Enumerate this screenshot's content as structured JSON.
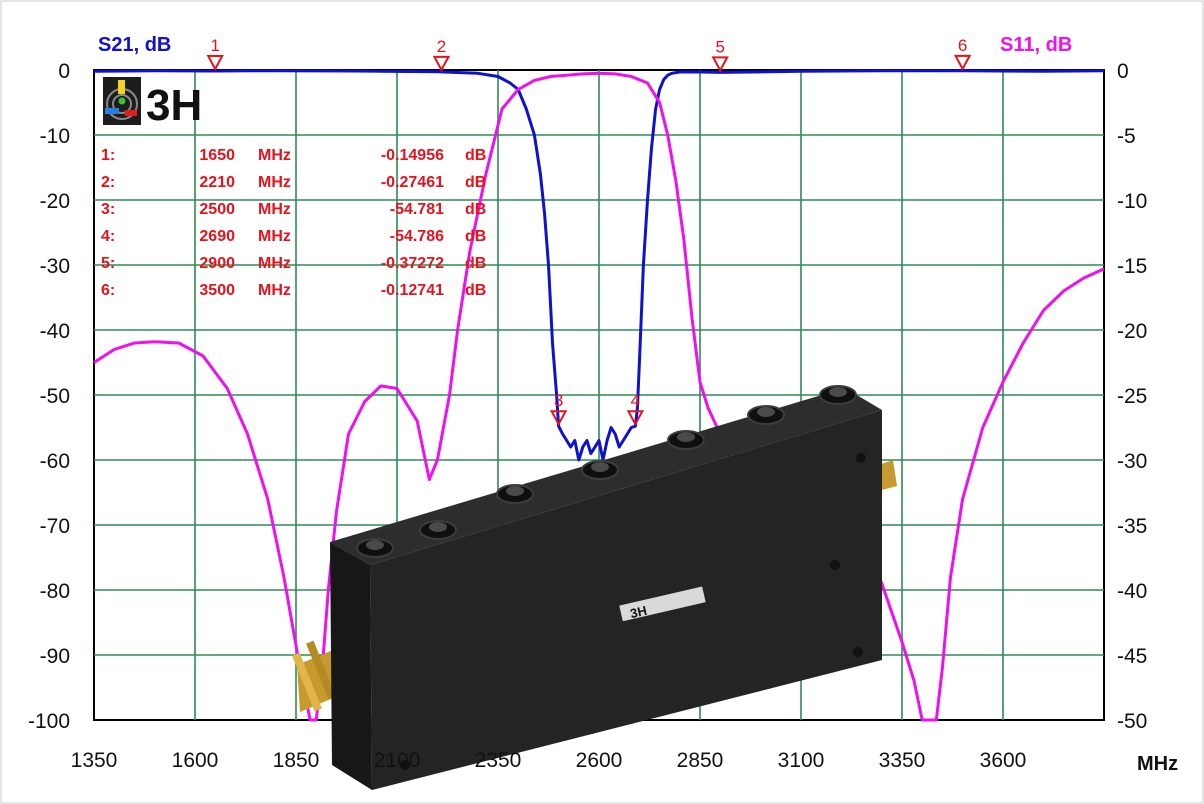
{
  "chart_data": {
    "type": "line",
    "xlabel": "MHz",
    "x_ticks": [
      "1350",
      "1600",
      "1850",
      "2100",
      "2350",
      "2600",
      "2850",
      "3100",
      "3350",
      "3600"
    ],
    "xlim": [
      1350,
      3850
    ],
    "y_left_label": "S21, dB",
    "y_left_ticks": [
      "0",
      "-10",
      "-20",
      "-30",
      "-40",
      "-50",
      "-60",
      "-70",
      "-80",
      "-90",
      "-100"
    ],
    "y_left_lim": [
      -100,
      0
    ],
    "y_right_label": "S11, dB",
    "y_right_ticks": [
      "0",
      "-5",
      "-10",
      "-15",
      "-20",
      "-25",
      "-30",
      "-35",
      "-40",
      "-45",
      "-50"
    ],
    "y_right_lim": [
      -50,
      0
    ],
    "grid": true,
    "series": [
      {
        "name": "S21, dB",
        "axis": "left",
        "color": "#1010d0",
        "x": [
          1350,
          1500,
          1650,
          1800,
          2000,
          2200,
          2300,
          2350,
          2380,
          2400,
          2420,
          2440,
          2455,
          2465,
          2475,
          2485,
          2495,
          2500,
          2510,
          2520,
          2530,
          2540,
          2550,
          2560,
          2570,
          2580,
          2590,
          2600,
          2610,
          2620,
          2630,
          2640,
          2650,
          2660,
          2670,
          2680,
          2690,
          2695,
          2700,
          2710,
          2720,
          2730,
          2740,
          2750,
          2760,
          2770,
          2780,
          2800,
          2850,
          2900,
          3100,
          3300,
          3500,
          3700,
          3850
        ],
        "y": [
          -0.2,
          -0.1,
          -0.15,
          -0.1,
          -0.15,
          -0.27,
          -0.5,
          -1,
          -2,
          -3,
          -6,
          -10,
          -16,
          -22,
          -30,
          -42,
          -50,
          -54.8,
          -56,
          -57,
          -58,
          -57,
          -60,
          -58,
          -57,
          -59,
          -58,
          -57,
          -60,
          -57,
          -55,
          -56,
          -58,
          -57,
          -56,
          -55,
          -54.8,
          -52,
          -45,
          -30,
          -20,
          -12,
          -6,
          -3,
          -1.5,
          -0.8,
          -0.5,
          -0.3,
          -0.3,
          -0.37,
          -0.2,
          -0.1,
          -0.13,
          -0.2,
          -0.1
        ]
      },
      {
        "name": "S11, dB",
        "axis": "right",
        "color": "#ee10ee",
        "x": [
          1350,
          1400,
          1450,
          1500,
          1560,
          1620,
          1680,
          1730,
          1780,
          1820,
          1860,
          1885,
          1900,
          1915,
          1930,
          1950,
          1980,
          2020,
          2060,
          2100,
          2120,
          2150,
          2170,
          2180,
          2200,
          2230,
          2250,
          2280,
          2320,
          2360,
          2400,
          2440,
          2480,
          2520,
          2560,
          2600,
          2640,
          2680,
          2720,
          2750,
          2770,
          2790,
          2810,
          2830,
          2850,
          2870,
          2900,
          2940,
          2980,
          3020,
          3060,
          3100,
          3150,
          3200,
          3250,
          3300,
          3350,
          3380,
          3400,
          3410,
          3420,
          3435,
          3450,
          3470,
          3500,
          3550,
          3600,
          3650,
          3700,
          3750,
          3800,
          3850
        ],
        "y": [
          -22.5,
          -21.5,
          -21,
          -20.9,
          -21,
          -22,
          -24.5,
          -28,
          -33,
          -39,
          -46,
          -50,
          -50,
          -46,
          -40,
          -34,
          -28,
          -25.5,
          -24.3,
          -24.5,
          -25.5,
          -27,
          -30,
          -31.5,
          -30,
          -25,
          -20,
          -14,
          -8,
          -3,
          -1.5,
          -0.8,
          -0.5,
          -0.4,
          -0.3,
          -0.25,
          -0.3,
          -0.5,
          -1,
          -2.5,
          -5,
          -8.5,
          -13,
          -19,
          -24,
          -26,
          -28,
          -29.5,
          -31,
          -30.5,
          -30,
          -30,
          -31,
          -33,
          -36,
          -39.5,
          -44,
          -47,
          -50,
          -50,
          -50,
          -50,
          -46,
          -39,
          -33,
          -27.5,
          -24,
          -21,
          -18.5,
          -17,
          -16,
          -15.3
        ]
      }
    ],
    "markers": [
      {
        "id": "1",
        "x": 1650,
        "series": "S21, dB"
      },
      {
        "id": "2",
        "x": 2210,
        "series": "S21, dB"
      },
      {
        "id": "3",
        "x": 2500,
        "series": "S21, dB"
      },
      {
        "id": "4",
        "x": 2690,
        "series": "S21, dB"
      },
      {
        "id": "5",
        "x": 2900,
        "series": "S21, dB"
      },
      {
        "id": "6",
        "x": 3500,
        "series": "S21, dB"
      }
    ],
    "marker_table": [
      {
        "idx": "1:",
        "freq": "1650",
        "unit": "MHz",
        "value": "-0.14956",
        "vunit": "dB"
      },
      {
        "idx": "2:",
        "freq": "2210",
        "unit": "MHz",
        "value": "-0.27461",
        "vunit": "dB"
      },
      {
        "idx": "3:",
        "freq": "2500",
        "unit": "MHz",
        "value": "-54.781",
        "vunit": "dB"
      },
      {
        "idx": "4:",
        "freq": "2690",
        "unit": "MHz",
        "value": "-54.786",
        "vunit": "dB"
      },
      {
        "idx": "5:",
        "freq": "2900",
        "unit": "MHz",
        "value": "-0.37272",
        "vunit": "dB"
      },
      {
        "idx": "6:",
        "freq": "3500",
        "unit": "MHz",
        "value": "-0.12741",
        "vunit": "dB"
      }
    ],
    "logo_text": "3H",
    "device_label": "3H"
  }
}
